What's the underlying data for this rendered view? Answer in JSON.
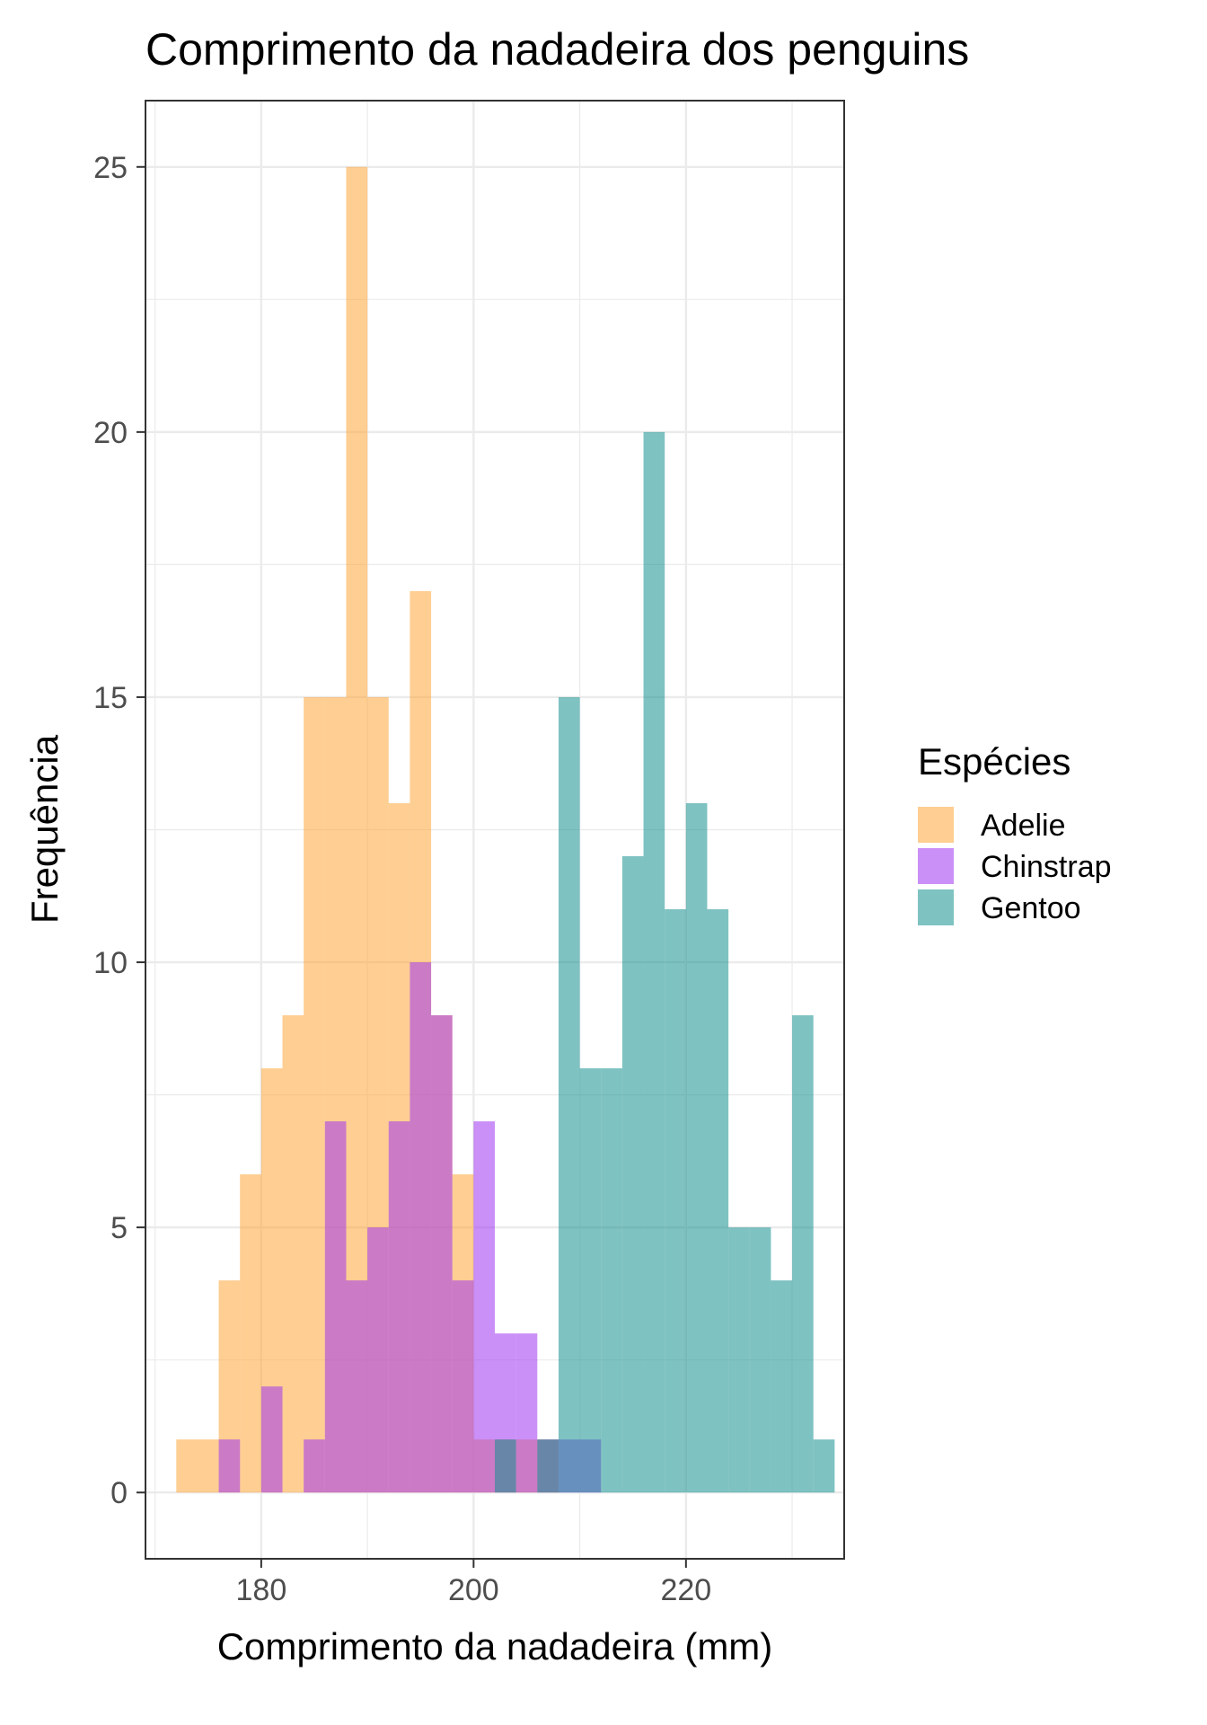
{
  "chart_data": {
    "type": "histogram",
    "title": "Comprimento da nadadeira dos penguins",
    "xlabel": "Comprimento da nadadeira (mm)",
    "ylabel": "Frequência",
    "xlim": [
      169.1,
      234.9
    ],
    "ylim": [
      -1.25,
      26.25
    ],
    "x_ticks": [
      180,
      200,
      220
    ],
    "y_ticks": [
      0,
      5,
      10,
      15,
      20,
      25
    ],
    "grid": true,
    "legend": {
      "title": "Espécies",
      "position": "right"
    },
    "bin_width": 2,
    "bin_start": 172,
    "series": [
      {
        "name": "Adelie",
        "color": "#FDA638",
        "counts": [
          1,
          1,
          4,
          6,
          8,
          9,
          15,
          15,
          25,
          15,
          13,
          17,
          9,
          6,
          1,
          1,
          1,
          1,
          0,
          0,
          0,
          0,
          0,
          0,
          0,
          0,
          0,
          0,
          0,
          0
        ]
      },
      {
        "name": "Chinstrap",
        "color": "#A034F0",
        "counts": [
          0,
          0,
          1,
          0,
          2,
          0,
          1,
          7,
          4,
          5,
          7,
          10,
          9,
          4,
          7,
          3,
          3,
          1,
          1,
          1,
          0,
          0,
          0,
          0,
          0,
          0,
          0,
          0,
          0,
          0
        ]
      },
      {
        "name": "Gentoo",
        "color": "#159090",
        "counts": [
          0,
          0,
          0,
          0,
          0,
          0,
          0,
          0,
          0,
          0,
          0,
          0,
          0,
          0,
          0,
          1,
          0,
          1,
          15,
          8,
          8,
          12,
          20,
          11,
          13,
          11,
          5,
          5,
          4,
          9,
          1
        ]
      }
    ]
  }
}
